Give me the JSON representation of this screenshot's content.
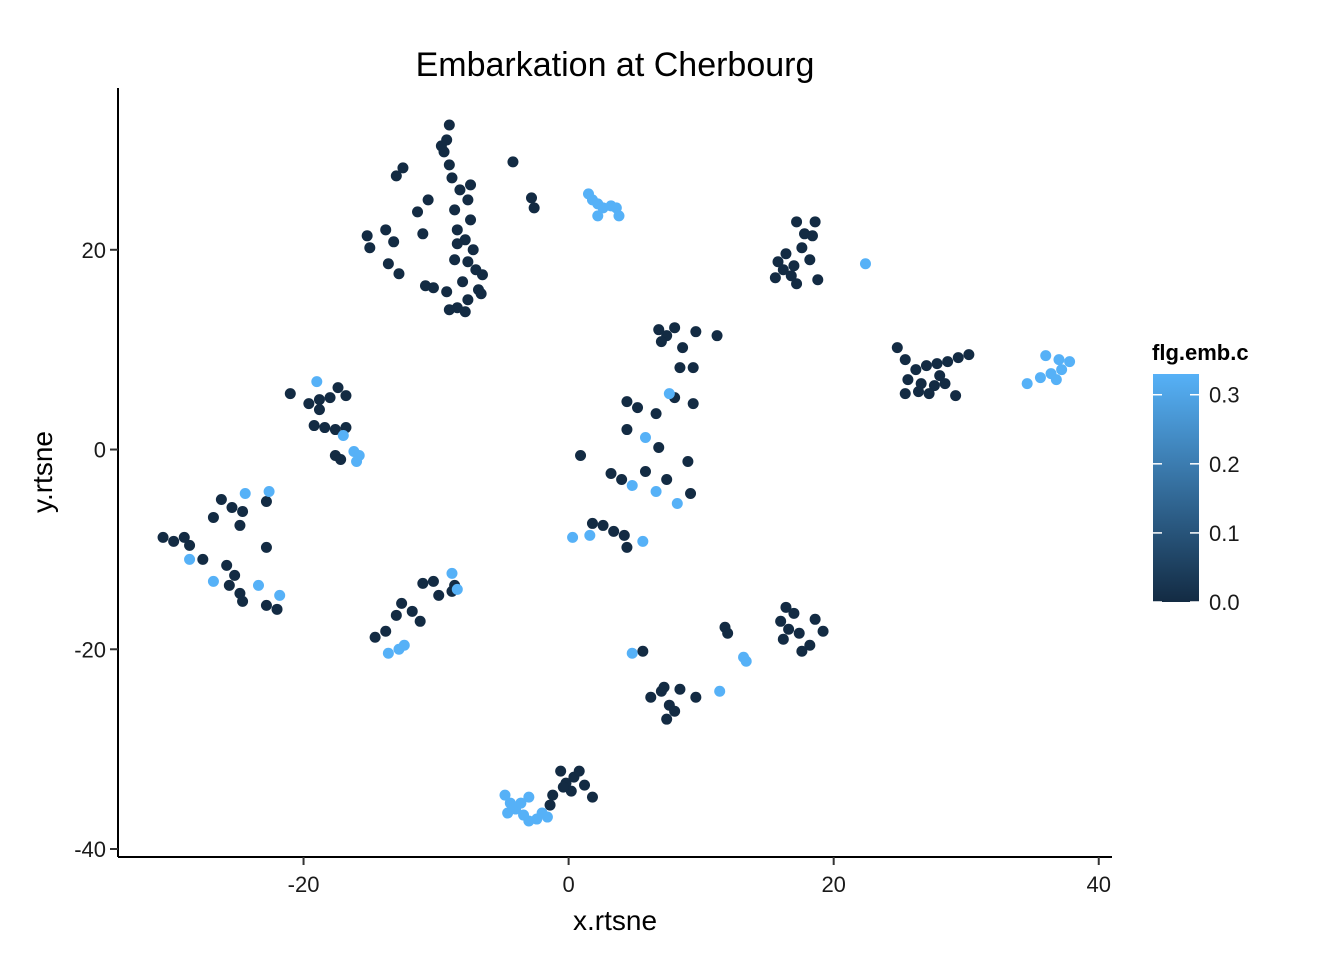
{
  "chart_data": {
    "type": "scatter",
    "title": "Embarkation at Cherbourg",
    "xlabel": "x.rtsne",
    "ylabel": "y.rtsne",
    "xlim": [
      -34,
      41
    ],
    "ylim": [
      -40.8,
      36.2
    ],
    "x_ticks": [
      -20,
      0,
      20,
      40
    ],
    "x_tick_labels": [
      "-20",
      "0",
      "20",
      "40"
    ],
    "y_ticks": [
      -40,
      -20,
      0,
      20
    ],
    "y_tick_labels": [
      "-40",
      "-20",
      "0",
      "20"
    ],
    "grid": false,
    "legend": {
      "title": "flg.emb.c",
      "position": "right",
      "type": "colorbar",
      "range": [
        0,
        0.33
      ],
      "breaks": [
        0.0,
        0.1,
        0.2,
        0.3
      ],
      "break_labels": [
        "0.0",
        "0.1",
        "0.2",
        "0.3"
      ],
      "color_low": "#132b43",
      "color_high": "#56b1f7"
    },
    "points": [
      {
        "x": -9.0,
        "y": 32.5,
        "c": 0.0
      },
      {
        "x": -9.2,
        "y": 31.0,
        "c": 0.0
      },
      {
        "x": -9.4,
        "y": 29.8,
        "c": 0.0
      },
      {
        "x": -9.0,
        "y": 28.5,
        "c": 0.0
      },
      {
        "x": -8.8,
        "y": 27.2,
        "c": 0.0
      },
      {
        "x": -8.2,
        "y": 26.0,
        "c": 0.0
      },
      {
        "x": -7.6,
        "y": 25.0,
        "c": 0.0
      },
      {
        "x": -8.6,
        "y": 24.0,
        "c": 0.0
      },
      {
        "x": -7.4,
        "y": 23.0,
        "c": 0.0
      },
      {
        "x": -8.4,
        "y": 22.0,
        "c": 0.0
      },
      {
        "x": -7.8,
        "y": 21.0,
        "c": 0.0
      },
      {
        "x": -7.2,
        "y": 20.0,
        "c": 0.0
      },
      {
        "x": -8.6,
        "y": 19.0,
        "c": 0.0
      },
      {
        "x": -7.0,
        "y": 18.0,
        "c": 0.0
      },
      {
        "x": -6.5,
        "y": 17.5,
        "c": 0.0
      },
      {
        "x": -8.0,
        "y": 16.8,
        "c": 0.0
      },
      {
        "x": -6.8,
        "y": 16.0,
        "c": 0.0
      },
      {
        "x": -9.2,
        "y": 15.8,
        "c": 0.0
      },
      {
        "x": -7.6,
        "y": 15.0,
        "c": 0.0
      },
      {
        "x": -8.4,
        "y": 14.2,
        "c": 0.0
      },
      {
        "x": -7.8,
        "y": 13.8,
        "c": 0.0
      },
      {
        "x": -9.0,
        "y": 14.0,
        "c": 0.0
      },
      {
        "x": -6.6,
        "y": 15.6,
        "c": 0.0
      },
      {
        "x": -7.6,
        "y": 18.8,
        "c": 0.0
      },
      {
        "x": -7.4,
        "y": 26.5,
        "c": 0.0
      },
      {
        "x": -9.6,
        "y": 30.4,
        "c": 0.0
      },
      {
        "x": -8.4,
        "y": 20.6,
        "c": 0.0
      },
      {
        "x": -10.2,
        "y": 16.2,
        "c": 0.0
      },
      {
        "x": -13.0,
        "y": 27.4,
        "c": 0.0
      },
      {
        "x": -12.5,
        "y": 28.2,
        "c": 0.0
      },
      {
        "x": -15.2,
        "y": 21.4,
        "c": 0.0
      },
      {
        "x": -15.0,
        "y": 20.2,
        "c": 0.0
      },
      {
        "x": -13.8,
        "y": 22.0,
        "c": 0.0
      },
      {
        "x": -13.2,
        "y": 20.8,
        "c": 0.0
      },
      {
        "x": -13.6,
        "y": 18.6,
        "c": 0.0
      },
      {
        "x": -12.8,
        "y": 17.6,
        "c": 0.0
      },
      {
        "x": -11.4,
        "y": 23.8,
        "c": 0.0
      },
      {
        "x": -11.0,
        "y": 21.6,
        "c": 0.0
      },
      {
        "x": -10.8,
        "y": 16.4,
        "c": 0.0
      },
      {
        "x": -10.6,
        "y": 25.0,
        "c": 0.0
      },
      {
        "x": -4.2,
        "y": 28.8,
        "c": 0.0
      },
      {
        "x": -2.8,
        "y": 25.2,
        "c": 0.0
      },
      {
        "x": -2.6,
        "y": 24.2,
        "c": 0.0
      },
      {
        "x": 1.5,
        "y": 25.6,
        "c": 0.33
      },
      {
        "x": 1.8,
        "y": 25.0,
        "c": 0.33
      },
      {
        "x": 2.2,
        "y": 24.6,
        "c": 0.33
      },
      {
        "x": 2.6,
        "y": 24.2,
        "c": 0.33
      },
      {
        "x": 3.2,
        "y": 24.4,
        "c": 0.33
      },
      {
        "x": 3.6,
        "y": 24.2,
        "c": 0.33
      },
      {
        "x": 2.2,
        "y": 23.4,
        "c": 0.33
      },
      {
        "x": 3.8,
        "y": 23.4,
        "c": 0.33
      },
      {
        "x": 15.8,
        "y": 18.8,
        "c": 0.0
      },
      {
        "x": 16.2,
        "y": 18.0,
        "c": 0.0
      },
      {
        "x": 15.6,
        "y": 17.2,
        "c": 0.0
      },
      {
        "x": 16.4,
        "y": 19.6,
        "c": 0.0
      },
      {
        "x": 17.2,
        "y": 22.8,
        "c": 0.0
      },
      {
        "x": 17.8,
        "y": 21.6,
        "c": 0.0
      },
      {
        "x": 18.6,
        "y": 22.8,
        "c": 0.0
      },
      {
        "x": 18.4,
        "y": 21.4,
        "c": 0.0
      },
      {
        "x": 17.6,
        "y": 20.2,
        "c": 0.0
      },
      {
        "x": 18.2,
        "y": 19.0,
        "c": 0.0
      },
      {
        "x": 17.0,
        "y": 18.4,
        "c": 0.0
      },
      {
        "x": 18.8,
        "y": 17.0,
        "c": 0.0
      },
      {
        "x": 17.2,
        "y": 16.6,
        "c": 0.0
      },
      {
        "x": 16.8,
        "y": 17.4,
        "c": 0.0
      },
      {
        "x": 22.4,
        "y": 18.6,
        "c": 0.33
      },
      {
        "x": 24.8,
        "y": 10.2,
        "c": 0.0
      },
      {
        "x": 25.4,
        "y": 9.0,
        "c": 0.0
      },
      {
        "x": 26.2,
        "y": 8.0,
        "c": 0.0
      },
      {
        "x": 27.0,
        "y": 8.4,
        "c": 0.0
      },
      {
        "x": 27.8,
        "y": 8.6,
        "c": 0.0
      },
      {
        "x": 28.6,
        "y": 8.8,
        "c": 0.0
      },
      {
        "x": 29.4,
        "y": 9.2,
        "c": 0.0
      },
      {
        "x": 30.2,
        "y": 9.5,
        "c": 0.0
      },
      {
        "x": 25.6,
        "y": 7.0,
        "c": 0.0
      },
      {
        "x": 26.6,
        "y": 6.6,
        "c": 0.0
      },
      {
        "x": 27.6,
        "y": 6.4,
        "c": 0.0
      },
      {
        "x": 28.4,
        "y": 6.6,
        "c": 0.0
      },
      {
        "x": 29.2,
        "y": 5.4,
        "c": 0.0
      },
      {
        "x": 25.4,
        "y": 5.6,
        "c": 0.0
      },
      {
        "x": 26.4,
        "y": 5.8,
        "c": 0.0
      },
      {
        "x": 27.2,
        "y": 5.6,
        "c": 0.0
      },
      {
        "x": 28.0,
        "y": 7.4,
        "c": 0.0
      },
      {
        "x": 34.6,
        "y": 6.6,
        "c": 0.33
      },
      {
        "x": 35.6,
        "y": 7.2,
        "c": 0.33
      },
      {
        "x": 36.4,
        "y": 7.6,
        "c": 0.33
      },
      {
        "x": 37.2,
        "y": 8.0,
        "c": 0.33
      },
      {
        "x": 37.8,
        "y": 8.8,
        "c": 0.33
      },
      {
        "x": 37.0,
        "y": 9.0,
        "c": 0.33
      },
      {
        "x": 36.0,
        "y": 9.4,
        "c": 0.33
      },
      {
        "x": 36.8,
        "y": 7.0,
        "c": 0.33
      },
      {
        "x": -19.6,
        "y": 4.6,
        "c": 0.0
      },
      {
        "x": -18.8,
        "y": 5.0,
        "c": 0.0
      },
      {
        "x": -18.0,
        "y": 5.2,
        "c": 0.0
      },
      {
        "x": -17.4,
        "y": 6.2,
        "c": 0.0
      },
      {
        "x": -16.8,
        "y": 5.4,
        "c": 0.0
      },
      {
        "x": -21.0,
        "y": 5.6,
        "c": 0.0
      },
      {
        "x": -19.2,
        "y": 2.4,
        "c": 0.0
      },
      {
        "x": -18.4,
        "y": 2.2,
        "c": 0.0
      },
      {
        "x": -17.6,
        "y": 2.0,
        "c": 0.0
      },
      {
        "x": -16.8,
        "y": 2.2,
        "c": 0.0
      },
      {
        "x": -17.6,
        "y": -0.6,
        "c": 0.0
      },
      {
        "x": -17.2,
        "y": -1.0,
        "c": 0.0
      },
      {
        "x": -18.8,
        "y": 4.0,
        "c": 0.0
      },
      {
        "x": -19.0,
        "y": 6.8,
        "c": 0.33
      },
      {
        "x": -17.0,
        "y": 1.4,
        "c": 0.33
      },
      {
        "x": -16.2,
        "y": -0.2,
        "c": 0.33
      },
      {
        "x": -15.8,
        "y": -0.6,
        "c": 0.33
      },
      {
        "x": -16.0,
        "y": -1.2,
        "c": 0.33
      },
      {
        "x": -30.6,
        "y": -8.8,
        "c": 0.0
      },
      {
        "x": -29.8,
        "y": -9.2,
        "c": 0.0
      },
      {
        "x": -29.0,
        "y": -8.8,
        "c": 0.0
      },
      {
        "x": -28.6,
        "y": -9.6,
        "c": 0.0
      },
      {
        "x": -26.8,
        "y": -6.8,
        "c": 0.0
      },
      {
        "x": -26.2,
        "y": -5.0,
        "c": 0.0
      },
      {
        "x": -25.4,
        "y": -5.8,
        "c": 0.0
      },
      {
        "x": -24.6,
        "y": -6.2,
        "c": 0.0
      },
      {
        "x": -24.8,
        "y": -7.6,
        "c": 0.0
      },
      {
        "x": -22.8,
        "y": -5.2,
        "c": 0.0
      },
      {
        "x": -22.8,
        "y": -9.8,
        "c": 0.0
      },
      {
        "x": -25.8,
        "y": -11.6,
        "c": 0.0
      },
      {
        "x": -25.2,
        "y": -12.6,
        "c": 0.0
      },
      {
        "x": -25.6,
        "y": -13.6,
        "c": 0.0
      },
      {
        "x": -24.8,
        "y": -14.4,
        "c": 0.0
      },
      {
        "x": -24.6,
        "y": -15.2,
        "c": 0.0
      },
      {
        "x": -22.8,
        "y": -15.6,
        "c": 0.0
      },
      {
        "x": -22.0,
        "y": -16.0,
        "c": 0.0
      },
      {
        "x": -27.6,
        "y": -11.0,
        "c": 0.0
      },
      {
        "x": -28.6,
        "y": -11.0,
        "c": 0.33
      },
      {
        "x": -26.8,
        "y": -13.2,
        "c": 0.33
      },
      {
        "x": -24.4,
        "y": -4.4,
        "c": 0.33
      },
      {
        "x": -22.6,
        "y": -4.2,
        "c": 0.33
      },
      {
        "x": -23.4,
        "y": -13.6,
        "c": 0.33
      },
      {
        "x": -21.8,
        "y": -14.6,
        "c": 0.33
      },
      {
        "x": -14.6,
        "y": -18.8,
        "c": 0.0
      },
      {
        "x": -13.8,
        "y": -18.2,
        "c": 0.0
      },
      {
        "x": -13.0,
        "y": -16.6,
        "c": 0.0
      },
      {
        "x": -12.6,
        "y": -15.4,
        "c": 0.0
      },
      {
        "x": -11.8,
        "y": -16.2,
        "c": 0.0
      },
      {
        "x": -11.2,
        "y": -17.2,
        "c": 0.0
      },
      {
        "x": -11.0,
        "y": -13.4,
        "c": 0.0
      },
      {
        "x": -10.2,
        "y": -13.2,
        "c": 0.0
      },
      {
        "x": -9.8,
        "y": -14.6,
        "c": 0.0
      },
      {
        "x": -8.8,
        "y": -14.2,
        "c": 0.0
      },
      {
        "x": -8.6,
        "y": -13.6,
        "c": 0.0
      },
      {
        "x": -13.6,
        "y": -20.4,
        "c": 0.33
      },
      {
        "x": -12.8,
        "y": -20.0,
        "c": 0.33
      },
      {
        "x": -12.4,
        "y": -19.6,
        "c": 0.33
      },
      {
        "x": -8.8,
        "y": -12.4,
        "c": 0.33
      },
      {
        "x": -8.4,
        "y": -14.0,
        "c": 0.33
      },
      {
        "x": 6.8,
        "y": 12.0,
        "c": 0.0
      },
      {
        "x": 7.4,
        "y": 11.4,
        "c": 0.0
      },
      {
        "x": 7.0,
        "y": 10.8,
        "c": 0.0
      },
      {
        "x": 8.0,
        "y": 12.2,
        "c": 0.0
      },
      {
        "x": 8.6,
        "y": 10.2,
        "c": 0.0
      },
      {
        "x": 9.6,
        "y": 11.8,
        "c": 0.0
      },
      {
        "x": 11.2,
        "y": 11.4,
        "c": 0.0
      },
      {
        "x": 8.4,
        "y": 8.2,
        "c": 0.0
      },
      {
        "x": 9.4,
        "y": 8.2,
        "c": 0.0
      },
      {
        "x": 4.4,
        "y": 4.8,
        "c": 0.0
      },
      {
        "x": 5.2,
        "y": 4.2,
        "c": 0.0
      },
      {
        "x": 6.6,
        "y": 3.6,
        "c": 0.0
      },
      {
        "x": 8.0,
        "y": 5.2,
        "c": 0.0
      },
      {
        "x": 9.4,
        "y": 4.6,
        "c": 0.0
      },
      {
        "x": 4.4,
        "y": 2.0,
        "c": 0.0
      },
      {
        "x": 6.8,
        "y": 0.2,
        "c": 0.0
      },
      {
        "x": 0.9,
        "y": -0.6,
        "c": 0.0
      },
      {
        "x": 3.2,
        "y": -2.4,
        "c": 0.0
      },
      {
        "x": 4.0,
        "y": -3.0,
        "c": 0.0
      },
      {
        "x": 5.8,
        "y": -2.2,
        "c": 0.0
      },
      {
        "x": 7.4,
        "y": -3.0,
        "c": 0.0
      },
      {
        "x": 9.0,
        "y": -1.2,
        "c": 0.0
      },
      {
        "x": 9.2,
        "y": -4.4,
        "c": 0.0
      },
      {
        "x": 1.8,
        "y": -7.4,
        "c": 0.0
      },
      {
        "x": 2.6,
        "y": -7.6,
        "c": 0.0
      },
      {
        "x": 3.4,
        "y": -8.2,
        "c": 0.0
      },
      {
        "x": 4.2,
        "y": -8.6,
        "c": 0.0
      },
      {
        "x": 4.4,
        "y": -9.8,
        "c": 0.0
      },
      {
        "x": 5.8,
        "y": 1.2,
        "c": 0.33
      },
      {
        "x": 4.8,
        "y": -3.6,
        "c": 0.33
      },
      {
        "x": 6.6,
        "y": -4.2,
        "c": 0.33
      },
      {
        "x": 8.2,
        "y": -5.4,
        "c": 0.33
      },
      {
        "x": 7.6,
        "y": 5.6,
        "c": 0.33
      },
      {
        "x": 0.3,
        "y": -8.8,
        "c": 0.33
      },
      {
        "x": 1.6,
        "y": -8.6,
        "c": 0.33
      },
      {
        "x": 5.6,
        "y": -9.2,
        "c": 0.33
      },
      {
        "x": 16.4,
        "y": -15.8,
        "c": 0.0
      },
      {
        "x": 17.0,
        "y": -16.4,
        "c": 0.0
      },
      {
        "x": 16.0,
        "y": -17.2,
        "c": 0.0
      },
      {
        "x": 16.6,
        "y": -18.0,
        "c": 0.0
      },
      {
        "x": 17.4,
        "y": -18.4,
        "c": 0.0
      },
      {
        "x": 16.2,
        "y": -19.0,
        "c": 0.0
      },
      {
        "x": 17.6,
        "y": -20.2,
        "c": 0.0
      },
      {
        "x": 18.2,
        "y": -19.6,
        "c": 0.0
      },
      {
        "x": 18.6,
        "y": -17.0,
        "c": 0.0
      },
      {
        "x": 19.2,
        "y": -18.2,
        "c": 0.0
      },
      {
        "x": 11.8,
        "y": -17.8,
        "c": 0.0
      },
      {
        "x": 12.0,
        "y": -18.4,
        "c": 0.0
      },
      {
        "x": 6.2,
        "y": -24.8,
        "c": 0.0
      },
      {
        "x": 7.0,
        "y": -24.2,
        "c": 0.0
      },
      {
        "x": 7.6,
        "y": -25.6,
        "c": 0.0
      },
      {
        "x": 7.4,
        "y": -27.0,
        "c": 0.0
      },
      {
        "x": 8.4,
        "y": -24.0,
        "c": 0.0
      },
      {
        "x": 9.6,
        "y": -24.8,
        "c": 0.0
      },
      {
        "x": 7.2,
        "y": -23.8,
        "c": 0.0
      },
      {
        "x": 8.0,
        "y": -26.2,
        "c": 0.0
      },
      {
        "x": 5.6,
        "y": -20.2,
        "c": 0.0
      },
      {
        "x": 4.8,
        "y": -20.4,
        "c": 0.33
      },
      {
        "x": 11.4,
        "y": -24.2,
        "c": 0.33
      },
      {
        "x": 13.2,
        "y": -20.8,
        "c": 0.33
      },
      {
        "x": 13.4,
        "y": -21.2,
        "c": 0.33
      },
      {
        "x": -0.6,
        "y": -32.2,
        "c": 0.0
      },
      {
        "x": -0.2,
        "y": -33.4,
        "c": 0.0
      },
      {
        "x": 0.4,
        "y": -32.8,
        "c": 0.0
      },
      {
        "x": 0.8,
        "y": -32.2,
        "c": 0.0
      },
      {
        "x": 1.2,
        "y": -33.6,
        "c": 0.0
      },
      {
        "x": 1.8,
        "y": -34.8,
        "c": 0.0
      },
      {
        "x": 0.2,
        "y": -34.2,
        "c": 0.0
      },
      {
        "x": -1.2,
        "y": -34.6,
        "c": 0.0
      },
      {
        "x": -1.4,
        "y": -35.6,
        "c": 0.0
      },
      {
        "x": -0.4,
        "y": -33.8,
        "c": 0.0
      },
      {
        "x": -4.8,
        "y": -34.6,
        "c": 0.33
      },
      {
        "x": -4.4,
        "y": -35.4,
        "c": 0.33
      },
      {
        "x": -4.0,
        "y": -36.0,
        "c": 0.33
      },
      {
        "x": -3.4,
        "y": -36.6,
        "c": 0.33
      },
      {
        "x": -3.0,
        "y": -37.2,
        "c": 0.33
      },
      {
        "x": -2.4,
        "y": -37.0,
        "c": 0.33
      },
      {
        "x": -2.0,
        "y": -36.4,
        "c": 0.33
      },
      {
        "x": -3.6,
        "y": -35.4,
        "c": 0.33
      },
      {
        "x": -4.6,
        "y": -36.4,
        "c": 0.33
      },
      {
        "x": -3.0,
        "y": -34.8,
        "c": 0.33
      },
      {
        "x": -1.6,
        "y": -36.8,
        "c": 0.33
      }
    ]
  }
}
